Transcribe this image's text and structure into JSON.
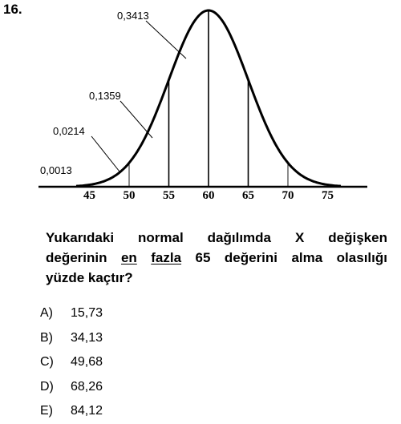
{
  "question": {
    "number": "16.",
    "stem_lines": [
      [
        "Yukarıdaki",
        "normal",
        "dağılımda",
        "X",
        "değişken"
      ],
      [
        "değerinin",
        "en",
        "fazla",
        "65",
        "değerini",
        "alma",
        "olasılığı"
      ],
      [
        "yüzde kaçtır?"
      ]
    ],
    "underlined_words": [
      "en",
      "fazla"
    ]
  },
  "figure": {
    "x_ticks": [
      "45",
      "50",
      "55",
      "60",
      "65",
      "70",
      "75"
    ],
    "annotations": [
      "0,3413",
      "0,1359",
      "0,0214",
      "0,0013"
    ],
    "vertical_lines_at": [
      "50",
      "55",
      "60",
      "65",
      "70"
    ]
  },
  "options": [
    {
      "letter": "A)",
      "value": "15,73"
    },
    {
      "letter": "B)",
      "value": "34,13"
    },
    {
      "letter": "C)",
      "value": "49,68"
    },
    {
      "letter": "D)",
      "value": "68,26"
    },
    {
      "letter": "E)",
      "value": "84,12"
    }
  ]
}
